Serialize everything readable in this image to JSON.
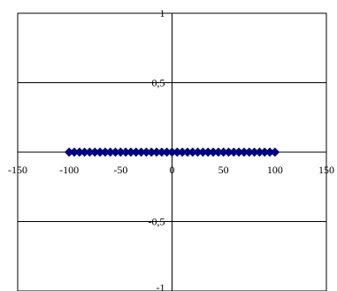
{
  "chart_data": {
    "type": "scatter",
    "title": "",
    "xlabel": "",
    "ylabel": "",
    "xlim": [
      -150,
      150
    ],
    "ylim": [
      -1,
      1
    ],
    "x_ticks": [
      -150,
      -100,
      -50,
      0,
      50,
      100,
      150
    ],
    "y_ticks": [
      -1,
      -0.5,
      0.5,
      1
    ],
    "x_tick_labels": [
      "-150",
      "-100",
      "-50",
      "0",
      "50",
      "100",
      "150"
    ],
    "y_tick_labels": [
      "-1",
      "-0,5",
      "0,5",
      "1"
    ],
    "grid": "horizontal",
    "legend": "none",
    "marker": "diamond",
    "series": [
      {
        "color": "#000080",
        "points": [
          [
            -100,
            0
          ],
          [
            -95,
            0
          ],
          [
            -90,
            0
          ],
          [
            -85,
            0
          ],
          [
            -80,
            0
          ],
          [
            -75,
            0
          ],
          [
            -70,
            0
          ],
          [
            -65,
            0
          ],
          [
            -60,
            0
          ],
          [
            -55,
            0
          ],
          [
            -50,
            0
          ],
          [
            -45,
            0
          ],
          [
            -40,
            0
          ],
          [
            -35,
            0
          ],
          [
            -30,
            0
          ],
          [
            -25,
            0
          ],
          [
            -20,
            0
          ],
          [
            -15,
            0
          ],
          [
            -10,
            0
          ],
          [
            -5,
            0
          ],
          [
            0,
            0
          ],
          [
            5,
            0
          ],
          [
            10,
            0
          ],
          [
            15,
            0
          ],
          [
            20,
            0
          ],
          [
            25,
            0
          ],
          [
            30,
            0
          ],
          [
            35,
            0
          ],
          [
            40,
            0
          ],
          [
            45,
            0
          ],
          [
            50,
            0
          ],
          [
            55,
            0
          ],
          [
            60,
            0
          ],
          [
            65,
            0
          ],
          [
            70,
            0
          ],
          [
            75,
            0
          ],
          [
            80,
            0
          ],
          [
            85,
            0
          ],
          [
            90,
            0
          ],
          [
            95,
            0
          ],
          [
            100,
            0
          ]
        ]
      }
    ]
  }
}
